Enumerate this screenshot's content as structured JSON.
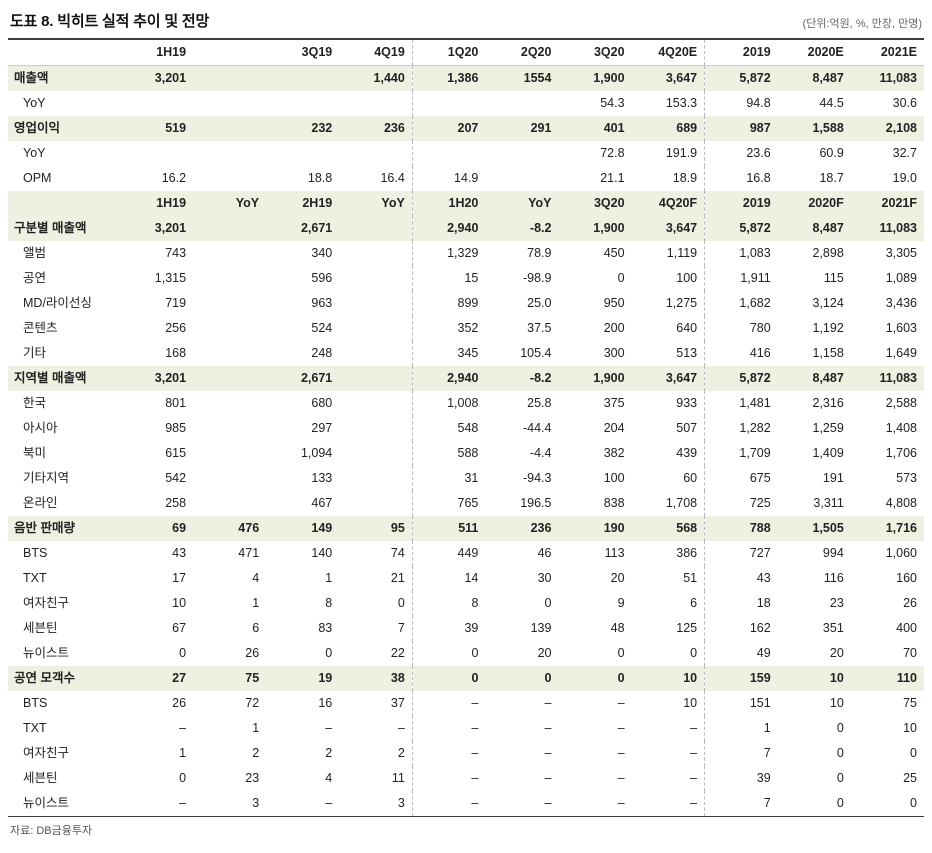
{
  "title": "도표 8. 빅히트 실적 추이 및 전망",
  "unit_note": "(단위:억원, %, 만장, 만명)",
  "source": "자료: DB금융투자",
  "colors": {
    "highlight_row_bg": "#eef1e2",
    "table_border": "#3c3c3c",
    "dashed_separator": "#b8b8b8",
    "text": "#222222",
    "muted_text": "#666666"
  },
  "table": {
    "header1": [
      "",
      "1H19",
      "",
      "3Q19",
      "4Q19",
      "1Q20",
      "2Q20",
      "3Q20",
      "4Q20E",
      "2019",
      "2020E",
      "2021E"
    ],
    "rows": [
      {
        "label": "매출액",
        "type": "section",
        "values": [
          "3,201",
          "",
          "",
          "1,440",
          "1,386",
          "1554",
          "1,900",
          "3,647",
          "5,872",
          "8,487",
          "11,083"
        ]
      },
      {
        "label": "YoY",
        "type": "sub",
        "values": [
          "",
          "",
          "",
          "",
          "",
          "",
          "54.3",
          "153.3",
          "94.8",
          "44.5",
          "30.6"
        ]
      },
      {
        "label": "영업이익",
        "type": "section",
        "values": [
          "519",
          "",
          "232",
          "236",
          "207",
          "291",
          "401",
          "689",
          "987",
          "1,588",
          "2,108"
        ]
      },
      {
        "label": "YoY",
        "type": "sub",
        "values": [
          "",
          "",
          "",
          "",
          "",
          "",
          "72.8",
          "191.9",
          "23.6",
          "60.9",
          "32.7"
        ]
      },
      {
        "label": "OPM",
        "type": "sub",
        "values": [
          "16.2",
          "",
          "18.8",
          "16.4",
          "14.9",
          "",
          "21.1",
          "18.9",
          "16.8",
          "18.7",
          "19.0"
        ]
      },
      {
        "label": "",
        "type": "header",
        "values": [
          "1H19",
          "YoY",
          "2H19",
          "YoY",
          "1H20",
          "YoY",
          "3Q20",
          "4Q20F",
          "2019",
          "2020F",
          "2021F"
        ]
      },
      {
        "label": "구분별 매출액",
        "type": "section",
        "values": [
          "3,201",
          "",
          "2,671",
          "",
          "2,940",
          "-8.2",
          "1,900",
          "3,647",
          "5,872",
          "8,487",
          "11,083"
        ]
      },
      {
        "label": "앨범",
        "type": "sub",
        "values": [
          "743",
          "",
          "340",
          "",
          "1,329",
          "78.9",
          "450",
          "1,119",
          "1,083",
          "2,898",
          "3,305"
        ]
      },
      {
        "label": "공연",
        "type": "sub",
        "values": [
          "1,315",
          "",
          "596",
          "",
          "15",
          "-98.9",
          "0",
          "100",
          "1,911",
          "115",
          "1,089"
        ]
      },
      {
        "label": "MD/라이선싱",
        "type": "sub",
        "values": [
          "719",
          "",
          "963",
          "",
          "899",
          "25.0",
          "950",
          "1,275",
          "1,682",
          "3,124",
          "3,436"
        ]
      },
      {
        "label": "콘텐츠",
        "type": "sub",
        "values": [
          "256",
          "",
          "524",
          "",
          "352",
          "37.5",
          "200",
          "640",
          "780",
          "1,192",
          "1,603"
        ]
      },
      {
        "label": "기타",
        "type": "sub",
        "values": [
          "168",
          "",
          "248",
          "",
          "345",
          "105.4",
          "300",
          "513",
          "416",
          "1,158",
          "1,649"
        ]
      },
      {
        "label": "지역별 매출액",
        "type": "section",
        "values": [
          "3,201",
          "",
          "2,671",
          "",
          "2,940",
          "-8.2",
          "1,900",
          "3,647",
          "5,872",
          "8,487",
          "11,083"
        ]
      },
      {
        "label": "한국",
        "type": "sub",
        "values": [
          "801",
          "",
          "680",
          "",
          "1,008",
          "25.8",
          "375",
          "933",
          "1,481",
          "2,316",
          "2,588"
        ]
      },
      {
        "label": "아시아",
        "type": "sub",
        "values": [
          "985",
          "",
          "297",
          "",
          "548",
          "-44.4",
          "204",
          "507",
          "1,282",
          "1,259",
          "1,408"
        ]
      },
      {
        "label": "북미",
        "type": "sub",
        "values": [
          "615",
          "",
          "1,094",
          "",
          "588",
          "-4.4",
          "382",
          "439",
          "1,709",
          "1,409",
          "1,706"
        ]
      },
      {
        "label": "기타지역",
        "type": "sub",
        "values": [
          "542",
          "",
          "133",
          "",
          "31",
          "-94.3",
          "100",
          "60",
          "675",
          "191",
          "573"
        ]
      },
      {
        "label": "온라인",
        "type": "sub",
        "values": [
          "258",
          "",
          "467",
          "",
          "765",
          "196.5",
          "838",
          "1,708",
          "725",
          "3,311",
          "4,808"
        ]
      },
      {
        "label": "음반 판매량",
        "type": "section",
        "values": [
          "69",
          "476",
          "149",
          "95",
          "511",
          "236",
          "190",
          "568",
          "788",
          "1,505",
          "1,716"
        ]
      },
      {
        "label": "BTS",
        "type": "sub",
        "values": [
          "43",
          "471",
          "140",
          "74",
          "449",
          "46",
          "113",
          "386",
          "727",
          "994",
          "1,060"
        ]
      },
      {
        "label": "TXT",
        "type": "sub",
        "values": [
          "17",
          "4",
          "1",
          "21",
          "14",
          "30",
          "20",
          "51",
          "43",
          "116",
          "160"
        ]
      },
      {
        "label": "여자친구",
        "type": "sub",
        "values": [
          "10",
          "1",
          "8",
          "0",
          "8",
          "0",
          "9",
          "6",
          "18",
          "23",
          "26"
        ]
      },
      {
        "label": "세븐틴",
        "type": "sub",
        "values": [
          "67",
          "6",
          "83",
          "7",
          "39",
          "139",
          "48",
          "125",
          "162",
          "351",
          "400"
        ]
      },
      {
        "label": "뉴이스트",
        "type": "sub",
        "values": [
          "0",
          "26",
          "0",
          "22",
          "0",
          "20",
          "0",
          "0",
          "49",
          "20",
          "70"
        ]
      },
      {
        "label": "공연 모객수",
        "type": "section",
        "values": [
          "27",
          "75",
          "19",
          "38",
          "0",
          "0",
          "0",
          "10",
          "159",
          "10",
          "110"
        ]
      },
      {
        "label": "BTS",
        "type": "sub",
        "values": [
          "26",
          "72",
          "16",
          "37",
          "–",
          "–",
          "–",
          "10",
          "151",
          "10",
          "75"
        ]
      },
      {
        "label": "TXT",
        "type": "sub",
        "values": [
          "–",
          "1",
          "–",
          "–",
          "–",
          "–",
          "–",
          "–",
          "1",
          "0",
          "10"
        ]
      },
      {
        "label": "여자친구",
        "type": "sub",
        "values": [
          "1",
          "2",
          "2",
          "2",
          "–",
          "–",
          "–",
          "–",
          "7",
          "0",
          "0"
        ]
      },
      {
        "label": "세븐틴",
        "type": "sub",
        "values": [
          "0",
          "23",
          "4",
          "11",
          "–",
          "–",
          "–",
          "–",
          "39",
          "0",
          "25"
        ]
      },
      {
        "label": "뉴이스트",
        "type": "sub",
        "values": [
          "–",
          "3",
          "–",
          "3",
          "–",
          "–",
          "–",
          "–",
          "7",
          "0",
          "0"
        ]
      }
    ]
  }
}
